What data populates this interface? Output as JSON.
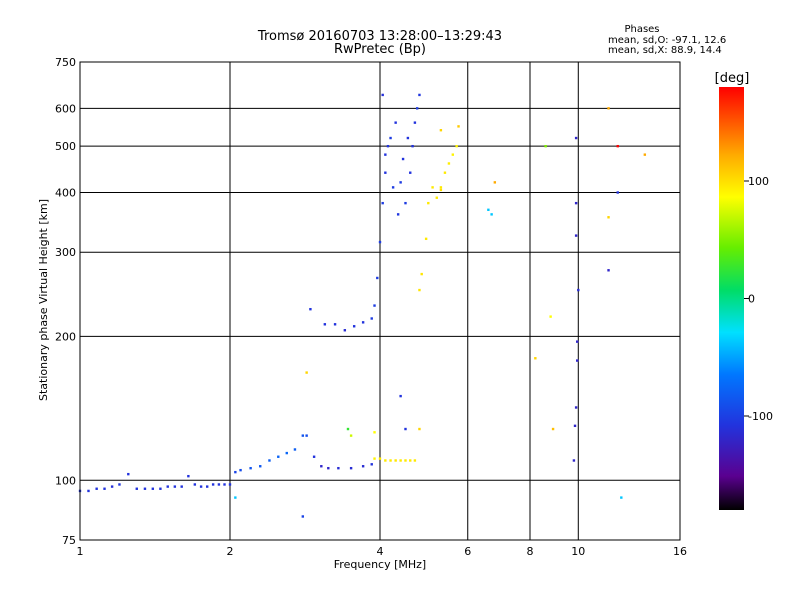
{
  "chart_data": {
    "type": "scatter",
    "title": "Tromsø 20160703 13:28:00–13:29:43",
    "subtitle": "RwPretec (Bp)",
    "stats": {
      "heading": "Phases",
      "line_o": "mean, sd,O: -97.1, 12.6",
      "line_x": "mean, sd,X: 88.9, 14.4"
    },
    "xlabel": "Frequency [MHz]",
    "ylabel": "Stationary phase Virtual Height [km]",
    "xscale": "log",
    "yscale": "log",
    "xlim": [
      1,
      16
    ],
    "ylim": [
      75,
      750
    ],
    "x_ticks": [
      1,
      2,
      4,
      6,
      8,
      10,
      16
    ],
    "y_ticks": [
      75,
      100,
      200,
      300,
      400,
      500,
      600,
      750
    ],
    "grid": true,
    "colorbar": {
      "label": "[deg]",
      "range": [
        -180,
        180
      ],
      "ticks": [
        100,
        0,
        -100
      ]
    },
    "series": [
      {
        "points": [
          [
            1.0,
            95,
            -110
          ],
          [
            1.04,
            95,
            -110
          ],
          [
            1.08,
            96,
            -110
          ],
          [
            1.12,
            96,
            -110
          ],
          [
            1.16,
            97,
            -112
          ],
          [
            1.2,
            98,
            -108
          ],
          [
            1.25,
            103,
            -110
          ],
          [
            1.3,
            96,
            -110
          ],
          [
            1.35,
            96,
            -110
          ],
          [
            1.4,
            96,
            -110
          ],
          [
            1.45,
            96,
            -110
          ],
          [
            1.5,
            97,
            -110
          ],
          [
            1.55,
            97,
            -110
          ],
          [
            1.6,
            97,
            -110
          ],
          [
            1.65,
            102,
            -110
          ],
          [
            1.7,
            98,
            -110
          ],
          [
            1.75,
            97,
            -110
          ],
          [
            1.8,
            97,
            -110
          ],
          [
            1.85,
            98,
            -110
          ],
          [
            1.9,
            98,
            -110
          ],
          [
            1.95,
            98,
            -110
          ],
          [
            2.0,
            98,
            -110
          ],
          [
            2.05,
            104,
            -100
          ],
          [
            2.1,
            105,
            -95
          ],
          [
            2.2,
            106,
            -90
          ],
          [
            2.3,
            107,
            -88
          ],
          [
            2.4,
            110,
            -85
          ],
          [
            2.5,
            112,
            -82
          ],
          [
            2.6,
            114,
            -80
          ],
          [
            2.7,
            116,
            -85
          ],
          [
            2.8,
            124,
            -90
          ],
          [
            2.85,
            124,
            -95
          ],
          [
            2.95,
            112,
            -110
          ],
          [
            3.05,
            107,
            -120
          ],
          [
            3.15,
            106,
            -120
          ],
          [
            3.3,
            106,
            -115
          ],
          [
            3.5,
            106,
            -115
          ],
          [
            3.7,
            107,
            -115
          ],
          [
            3.85,
            108,
            -110
          ],
          [
            3.9,
            111,
            105
          ],
          [
            4.0,
            111,
            110
          ],
          [
            4.1,
            110,
            110
          ],
          [
            4.2,
            110,
            110
          ],
          [
            4.3,
            110,
            112
          ],
          [
            4.4,
            110,
            110
          ],
          [
            4.5,
            110,
            110
          ],
          [
            4.6,
            110,
            110
          ],
          [
            4.7,
            110,
            110
          ],
          [
            2.9,
            228,
            -110
          ],
          [
            3.1,
            212,
            -110
          ],
          [
            3.25,
            212,
            -110
          ],
          [
            3.4,
            206,
            -115
          ],
          [
            3.55,
            210,
            -110
          ],
          [
            3.7,
            214,
            -110
          ],
          [
            3.85,
            218,
            -105
          ],
          [
            3.9,
            232,
            -105
          ],
          [
            3.95,
            265,
            -105
          ],
          [
            4.0,
            315,
            -105
          ],
          [
            4.05,
            380,
            -105
          ],
          [
            4.1,
            440,
            -110
          ],
          [
            4.15,
            500,
            -110
          ],
          [
            4.2,
            520,
            -105
          ],
          [
            4.3,
            560,
            -110
          ],
          [
            4.4,
            420,
            -105
          ],
          [
            4.5,
            380,
            -105
          ],
          [
            4.6,
            440,
            -110
          ],
          [
            4.65,
            500,
            -110
          ],
          [
            4.7,
            560,
            -110
          ],
          [
            4.8,
            640,
            -108
          ],
          [
            4.05,
            640,
            -112
          ],
          [
            4.1,
            480,
            -110
          ],
          [
            4.25,
            410,
            -105
          ],
          [
            4.35,
            360,
            -108
          ],
          [
            4.45,
            470,
            -110
          ],
          [
            4.55,
            520,
            -110
          ],
          [
            4.75,
            600,
            -105
          ],
          [
            4.8,
            250,
            112
          ],
          [
            4.85,
            270,
            112
          ],
          [
            4.95,
            320,
            110
          ],
          [
            5.0,
            380,
            110
          ],
          [
            5.1,
            410,
            110
          ],
          [
            5.2,
            390,
            110
          ],
          [
            5.3,
            410,
            110
          ],
          [
            5.4,
            440,
            110
          ],
          [
            5.5,
            460,
            108
          ],
          [
            5.6,
            480,
            105
          ],
          [
            5.7,
            500,
            105
          ],
          [
            5.3,
            540,
            120
          ],
          [
            5.75,
            550,
            125
          ],
          [
            6.8,
            420,
            140
          ],
          [
            6.7,
            360,
            -40
          ],
          [
            6.6,
            368,
            -40
          ],
          [
            8.2,
            180,
            120
          ],
          [
            8.6,
            500,
            50
          ],
          [
            8.8,
            220,
            100
          ],
          [
            8.9,
            128,
            130
          ],
          [
            9.9,
            520,
            -120
          ],
          [
            9.9,
            380,
            -120
          ],
          [
            9.9,
            325,
            -120
          ],
          [
            10.0,
            250,
            -115
          ],
          [
            9.95,
            195,
            -120
          ],
          [
            9.95,
            178,
            -120
          ],
          [
            9.9,
            142,
            -120
          ],
          [
            9.85,
            130,
            -120
          ],
          [
            9.8,
            110,
            -120
          ],
          [
            11.5,
            600,
            140
          ],
          [
            12.0,
            500,
            180
          ],
          [
            12.0,
            400,
            -110
          ],
          [
            11.5,
            275,
            -120
          ],
          [
            11.5,
            355,
            120
          ],
          [
            13.6,
            480,
            140
          ],
          [
            12.2,
            92,
            -40
          ],
          [
            2.85,
            168,
            120
          ],
          [
            2.8,
            84,
            -100
          ],
          [
            2.05,
            92,
            -40
          ],
          [
            3.45,
            128,
            20
          ],
          [
            3.5,
            124,
            80
          ],
          [
            3.9,
            126,
            100
          ],
          [
            4.4,
            150,
            -110
          ],
          [
            4.8,
            128,
            120
          ],
          [
            4.5,
            128,
            -110
          ],
          [
            5.3,
            405,
            115
          ]
        ]
      }
    ]
  }
}
